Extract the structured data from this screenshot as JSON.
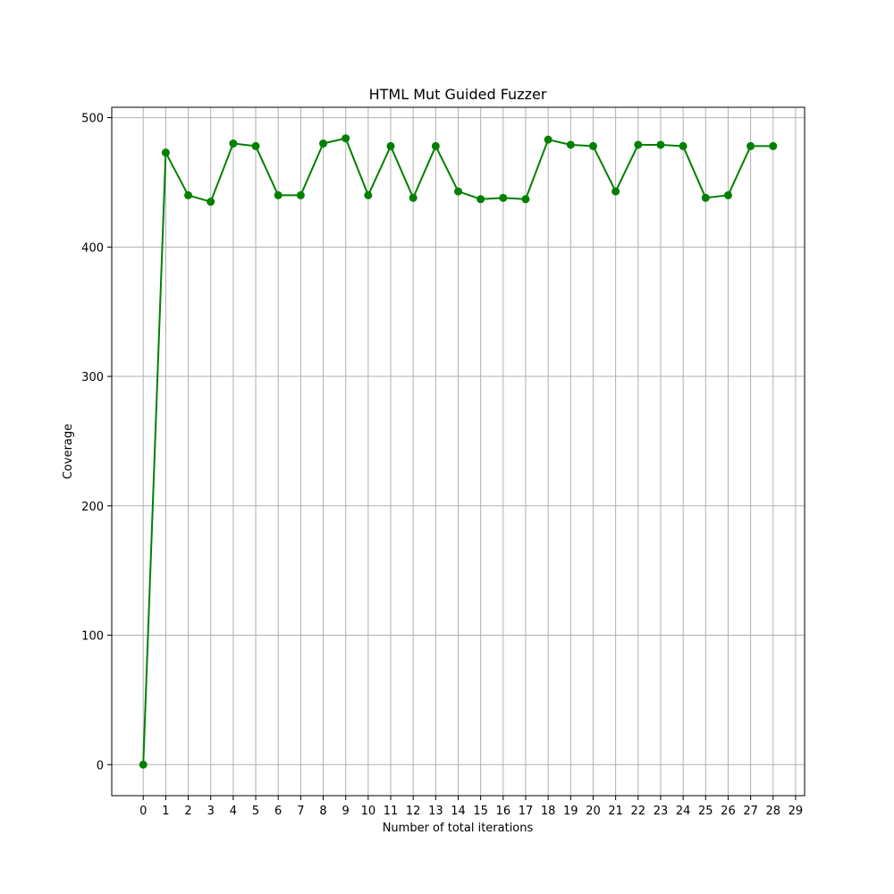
{
  "chart_data": {
    "type": "line",
    "title": "HTML Mut Guided Fuzzer",
    "xlabel": "Number of total iterations",
    "ylabel": "Coverage",
    "x_ticks": [
      0,
      1,
      2,
      3,
      4,
      5,
      6,
      7,
      8,
      9,
      10,
      11,
      12,
      13,
      14,
      15,
      16,
      17,
      18,
      19,
      20,
      21,
      22,
      23,
      24,
      25,
      26,
      27,
      28,
      29
    ],
    "y_ticks": [
      0,
      100,
      200,
      300,
      400,
      500
    ],
    "xlim": [
      -1.4,
      29.4
    ],
    "ylim": [
      -24,
      508
    ],
    "grid": true,
    "series": [
      {
        "color": "#008000",
        "marker": "circle",
        "x": [
          0,
          1,
          2,
          3,
          4,
          5,
          6,
          7,
          8,
          9,
          10,
          11,
          12,
          13,
          14,
          15,
          16,
          17,
          18,
          19,
          20,
          21,
          22,
          23,
          24,
          25,
          26,
          27,
          28
        ],
        "values": [
          0,
          473,
          440,
          435,
          480,
          478,
          440,
          440,
          480,
          484,
          440,
          478,
          438,
          478,
          443,
          437,
          438,
          437,
          483,
          479,
          478,
          443,
          479,
          479,
          478,
          438,
          440,
          478,
          478
        ]
      }
    ]
  }
}
